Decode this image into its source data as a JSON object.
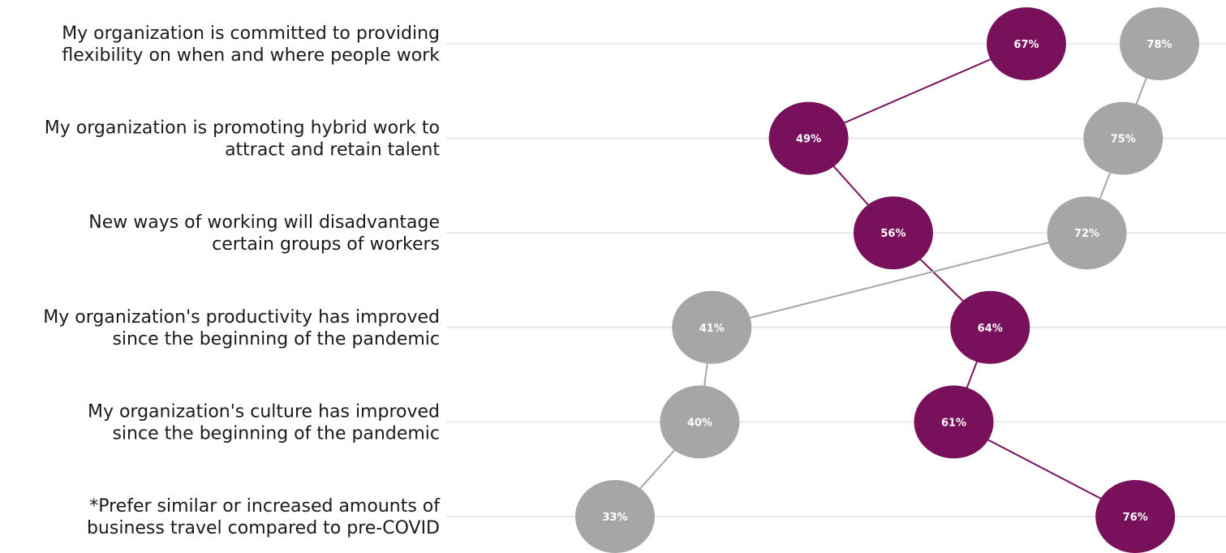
{
  "colors": {
    "series_a": "#78105c",
    "series_b": "#a6a6a6",
    "gridline": "#e9e9e9",
    "label_text": "#1a1a1a"
  },
  "chart_data": {
    "type": "scatter",
    "title": "",
    "xlabel": "",
    "ylabel": "",
    "grid": true,
    "xlim": [
      0,
      100
    ],
    "categories": [
      [
        "My organization is committed to providing",
        "flexibility on when and where people work"
      ],
      [
        "My organization is promoting hybrid work to",
        "attract and retain talent"
      ],
      [
        "New ways of working will disadvantage",
        "certain groups of workers"
      ],
      [
        "My organization's productivity has improved",
        "since the beginning of the pandemic"
      ],
      [
        "My organization's culture has improved",
        "since the beginning of the pandemic"
      ],
      [
        "*Prefer similar or increased amounts of",
        "business travel compared to pre-COVID"
      ]
    ],
    "series": [
      {
        "color": "#78105c",
        "values": [
          67,
          49,
          56,
          64,
          61,
          76
        ],
        "labels": [
          "67%",
          "49%",
          "56%",
          "64%",
          "61%",
          "76%"
        ]
      },
      {
        "color": "#a6a6a6",
        "values": [
          78,
          75,
          72,
          41,
          40,
          33
        ],
        "labels": [
          "78%",
          "75%",
          "72%",
          "41%",
          "40%",
          "33%"
        ]
      }
    ]
  }
}
